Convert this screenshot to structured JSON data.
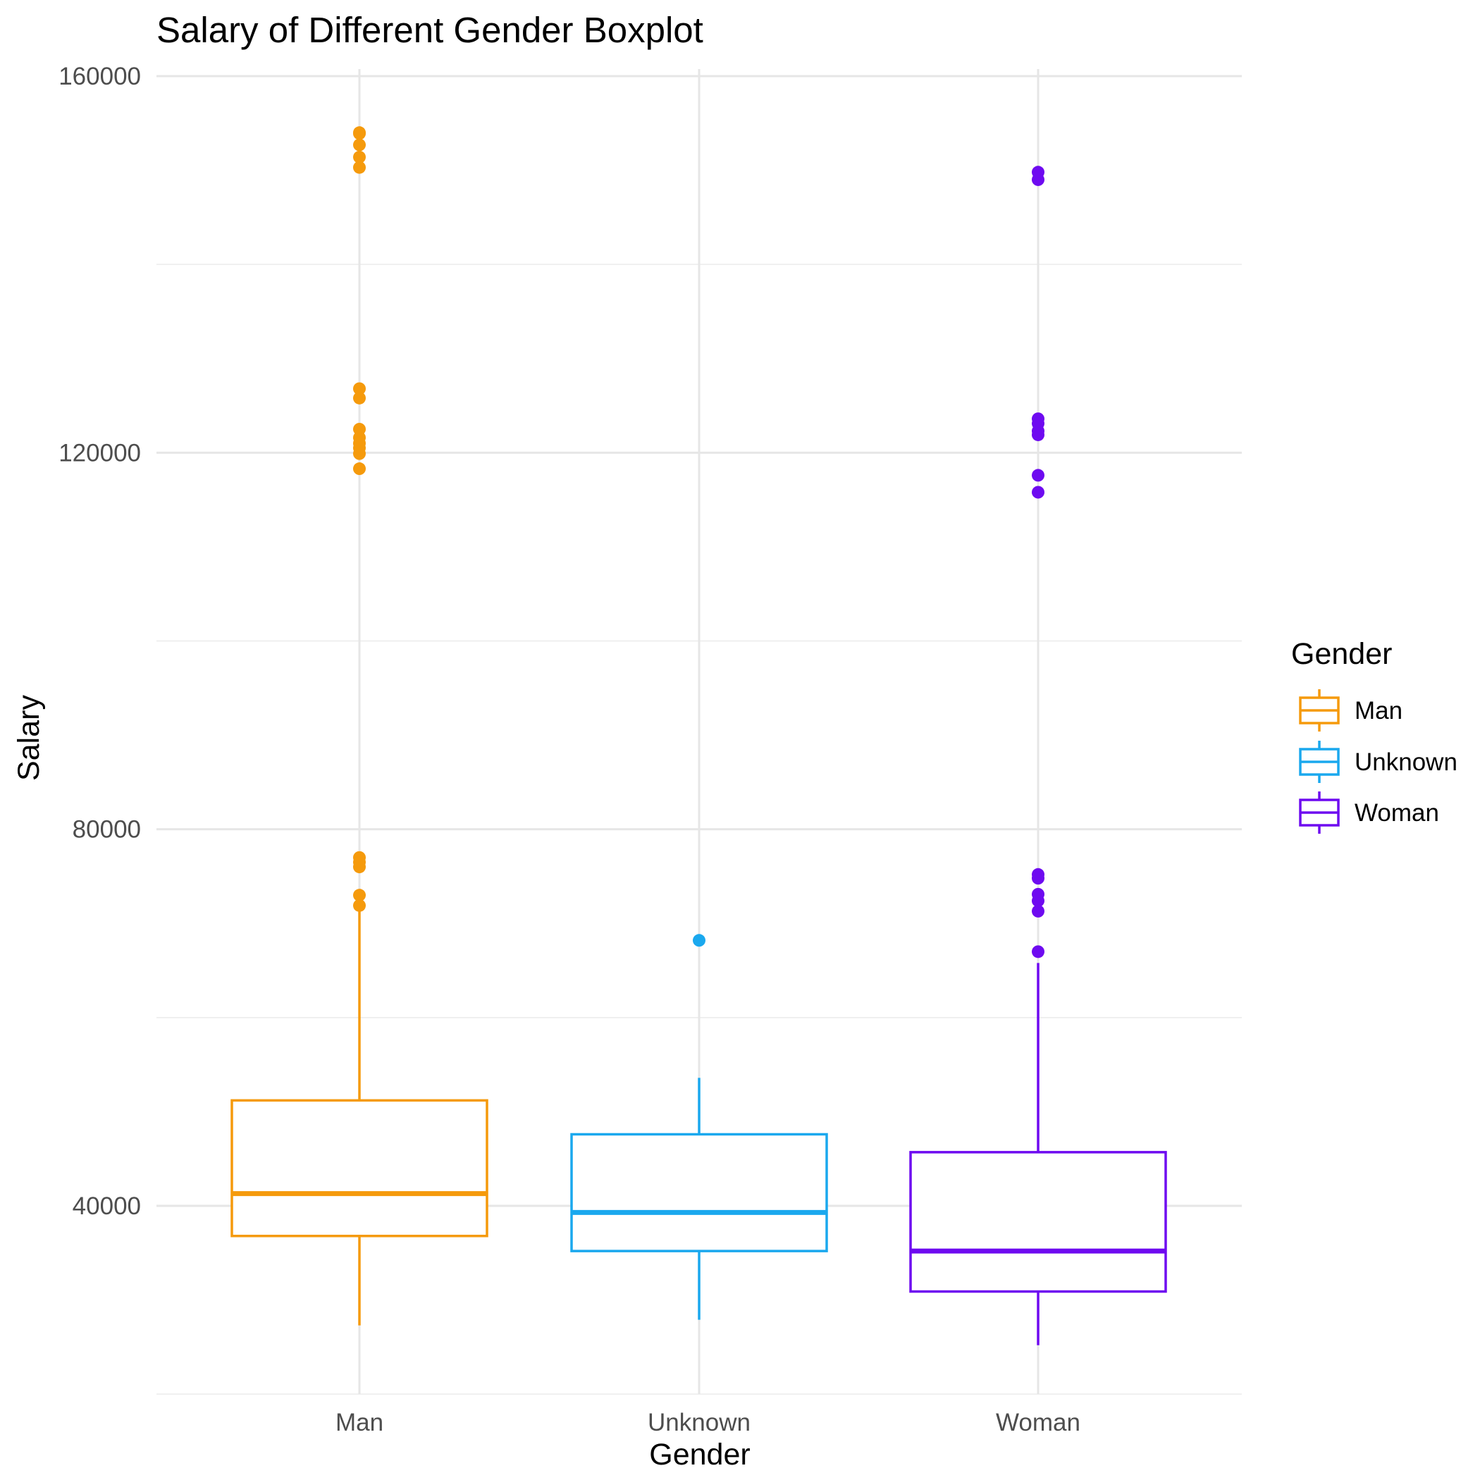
{
  "chart_data": {
    "type": "boxplot",
    "title": "Salary of Different Gender Boxplot",
    "xlabel": "Gender",
    "ylabel": "Salary",
    "categories": [
      "Man",
      "Unknown",
      "Woman"
    ],
    "y_ticks": [
      40000,
      80000,
      120000,
      160000
    ],
    "y_tick_labels": [
      "40000",
      "80000",
      "120000",
      "160000"
    ],
    "ylim": [
      20000,
      160000
    ],
    "grid": true,
    "legend": {
      "title": "Gender",
      "position": "right",
      "entries": [
        "Man",
        "Unknown",
        "Woman"
      ]
    },
    "series": [
      {
        "name": "Man",
        "color": "#F59A0C",
        "whisker_low": 27300,
        "q1": 36800,
        "median": 41300,
        "q3": 51200,
        "whisker_high": 71800,
        "outliers": [
          71900,
          73000,
          76000,
          76500,
          77000,
          118300,
          119900,
          120500,
          121000,
          121600,
          122500,
          125800,
          126800,
          150300,
          151400,
          152700,
          153900,
          154000
        ]
      },
      {
        "name": "Unknown",
        "color": "#1AA8EE",
        "whisker_low": 27900,
        "q1": 35200,
        "median": 39300,
        "q3": 47600,
        "whisker_high": 53600,
        "outliers": [
          68200
        ]
      },
      {
        "name": "Woman",
        "color": "#6E0AF0",
        "whisker_low": 25200,
        "q1": 30900,
        "median": 35200,
        "q3": 45700,
        "whisker_high": 65800,
        "outliers": [
          67000,
          71300,
          72400,
          73100,
          74800,
          75200,
          115800,
          117600,
          121900,
          122300,
          123100,
          123600,
          149000,
          149800
        ]
      }
    ]
  }
}
